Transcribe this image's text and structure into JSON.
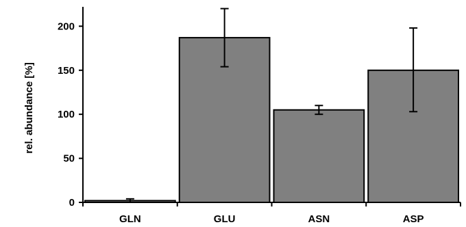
{
  "chart_data": {
    "type": "bar",
    "categories": [
      "GLN",
      "GLU",
      "ASN",
      "ASP"
    ],
    "values": [
      2,
      187,
      105,
      150
    ],
    "error_low": [
      0,
      154,
      100,
      103
    ],
    "error_high": [
      4,
      220,
      110,
      198
    ],
    "title": "",
    "xlabel": "",
    "ylabel": "rel. abundance [%]",
    "ylim": [
      0,
      222
    ],
    "yticks": [
      0,
      50,
      100,
      150,
      200
    ],
    "grid": false,
    "bar_color": "#808080",
    "edge_color": "#000000"
  }
}
